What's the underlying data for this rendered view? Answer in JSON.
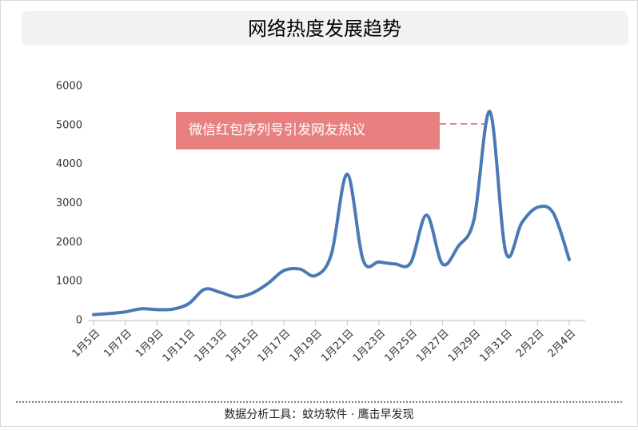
{
  "chart_data": {
    "type": "line",
    "title": "网络热度发展趋势",
    "categories": [
      "1月5日",
      null,
      "1月7日",
      null,
      "1月9日",
      null,
      "1月11日",
      null,
      "1月13日",
      null,
      "1月15日",
      null,
      "1月17日",
      null,
      "1月19日",
      null,
      "1月21日",
      null,
      "1月23日",
      null,
      "1月25日",
      null,
      "1月27日",
      null,
      "1月29日",
      null,
      "1月31日",
      null,
      "2月2日",
      null,
      "2月4日"
    ],
    "series": [
      {
        "name": "网络热度",
        "color": "#4a7ab5",
        "values": [
          150,
          180,
          220,
          300,
          280,
          290,
          430,
          800,
          720,
          600,
          700,
          950,
          1280,
          1320,
          1150,
          1700,
          3750,
          1550,
          1500,
          1450,
          1480,
          2700,
          1450,
          1900,
          2600,
          5350,
          1750,
          2500,
          2900,
          2750,
          1560
        ]
      }
    ],
    "ylim": [
      0,
      6000
    ],
    "yticks": [
      0,
      1000,
      2000,
      3000,
      4000,
      5000,
      6000
    ],
    "annotation": "微信红包序列号引发网友热议",
    "source": "数据分析工具：蚊坊软件 · 鹰击早发现"
  }
}
